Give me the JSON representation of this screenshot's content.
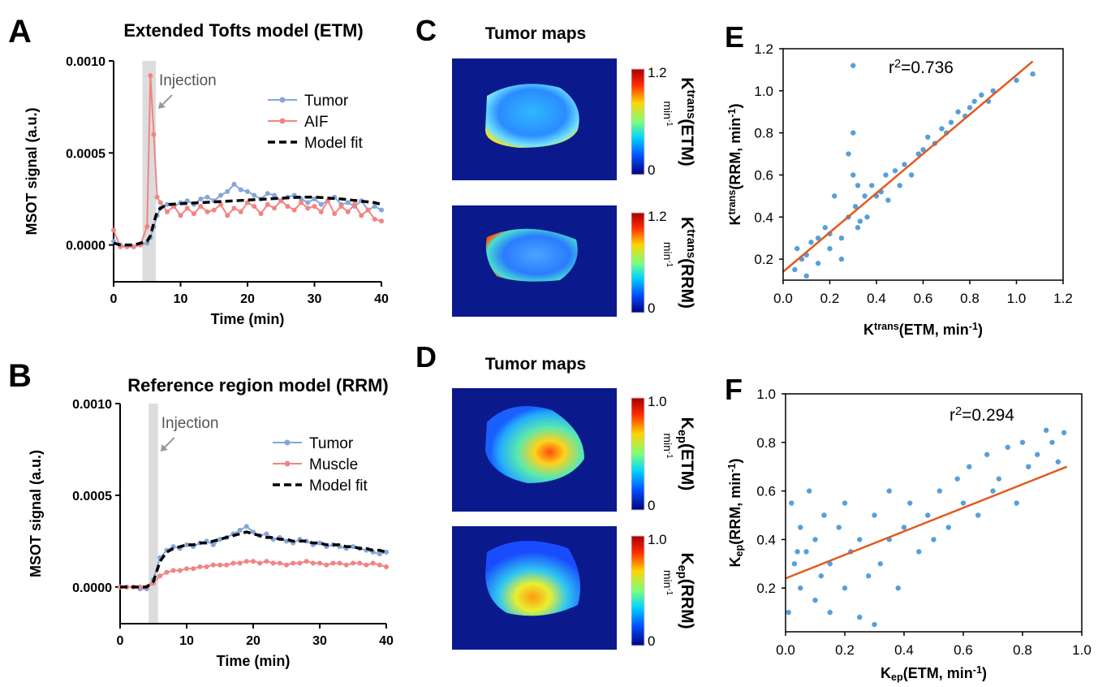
{
  "chart_data": [
    {
      "type": "line",
      "letter": "A",
      "title": "Extended Tofts model (ETM)",
      "x_label": "Time (min)",
      "y_label": "MSOT signal (a.u.)",
      "x": [
        0,
        1,
        2,
        3,
        4,
        5,
        5.5,
        6,
        6.5,
        7,
        8,
        9,
        10,
        11,
        12,
        13,
        14,
        15,
        16,
        17,
        18,
        19,
        20,
        21,
        22,
        23,
        24,
        25,
        26,
        27,
        28,
        29,
        30,
        31,
        32,
        33,
        34,
        35,
        36,
        37,
        38,
        39,
        40
      ],
      "xlim": [
        0,
        40
      ],
      "xticks": [
        0,
        10,
        20,
        30,
        40
      ],
      "ylim": [
        -0.0002,
        0.001
      ],
      "yticks": [
        {
          "value": 0,
          "label": "0.0000"
        },
        0.0005,
        {
          "value": 0.001,
          "label": "0.0010"
        }
      ],
      "shade": [
        4.3,
        6.3
      ],
      "annotation": "Injection",
      "legend": "upper right",
      "series": [
        {
          "name": "Tumor",
          "color": "#86a6da",
          "marker": true,
          "dashed": false,
          "values": [
            2e-05,
            0,
            -1e-05,
            -1e-05,
            0,
            1e-05,
            4e-05,
            0.0001,
            0.00016,
            0.0002,
            0.00022,
            0.00021,
            0.00023,
            0.00024,
            0.00022,
            0.00025,
            0.00026,
            0.00024,
            0.00027,
            0.00029,
            0.00033,
            0.0003,
            0.00029,
            0.00027,
            0.00025,
            0.00028,
            0.00027,
            0.00024,
            0.00026,
            0.00027,
            0.00025,
            0.00023,
            0.00025,
            0.00022,
            0.00024,
            0.00026,
            0.00022,
            0.00023,
            0.00021,
            0.00024,
            0.00019,
            0.00021,
            0.00019
          ]
        },
        {
          "name": "AIF",
          "color": "#f28482",
          "marker": true,
          "dashed": false,
          "values": [
            8e-05,
            -1e-05,
            -1e-05,
            -1e-05,
            0,
            0.0001,
            0.00092,
            0.0006,
            0.00026,
            0.00023,
            0.00018,
            0.00021,
            0.00016,
            0.0002,
            0.00017,
            0.00021,
            0.00018,
            0.00019,
            0.00022,
            0.00016,
            0.0002,
            0.00018,
            0.00023,
            0.00021,
            0.00017,
            0.00022,
            0.0002,
            0.00024,
            0.00021,
            0.00019,
            0.00023,
            0.0002,
            0.00021,
            0.00018,
            0.00024,
            0.00017,
            0.00021,
            0.00018,
            0.00022,
            0.00016,
            0.00019,
            0.00014,
            0.00013
          ]
        },
        {
          "name": "Model fit",
          "color": "#000000",
          "marker": false,
          "dashed": true,
          "values": [
            1e-05,
            0,
            0,
            0,
            1e-05,
            2e-05,
            5e-05,
            0.00012,
            0.00018,
            0.0002,
            0.00022,
            0.000222,
            0.000224,
            0.000226,
            0.000228,
            0.00023,
            0.000232,
            0.000234,
            0.000236,
            0.000238,
            0.00024,
            0.000242,
            0.000244,
            0.000246,
            0.000248,
            0.00025,
            0.000252,
            0.000254,
            0.000256,
            0.000258,
            0.00026,
            0.00026,
            0.00026,
            0.000258,
            0.000255,
            0.000252,
            0.00025,
            0.000246,
            0.000242,
            0.000238,
            0.000234,
            0.00023,
            0.00022
          ]
        }
      ]
    },
    {
      "type": "line",
      "letter": "B",
      "title": "Reference region model (RRM)",
      "x_label": "Time (min)",
      "y_label": "MSOT signal (a.u.)",
      "x": [
        0,
        1,
        2,
        3,
        4,
        5,
        6,
        7,
        8,
        9,
        10,
        11,
        12,
        13,
        14,
        15,
        16,
        17,
        18,
        19,
        20,
        21,
        22,
        23,
        24,
        25,
        26,
        27,
        28,
        29,
        30,
        31,
        32,
        33,
        34,
        35,
        36,
        37,
        38,
        39,
        40
      ],
      "xlim": [
        0,
        40
      ],
      "xticks": [
        0,
        10,
        20,
        30,
        40
      ],
      "ylim": [
        -0.0002,
        0.001
      ],
      "yticks": [
        {
          "value": 0,
          "label": "0.0000"
        },
        0.0005,
        {
          "value": 0.001,
          "label": "0.0010"
        }
      ],
      "shade": [
        4.3,
        5.7
      ],
      "annotation": "Injection",
      "legend": "upper right",
      "series": [
        {
          "name": "Tumor",
          "color": "#86a6da",
          "marker": true,
          "dashed": false,
          "values": [
            0,
            0,
            0,
            -1e-05,
            -1e-05,
            4e-05,
            0.00016,
            0.0002,
            0.00022,
            0.00021,
            0.00023,
            0.00022,
            0.00024,
            0.00025,
            0.00023,
            0.00026,
            0.00027,
            0.00029,
            0.00031,
            0.00033,
            0.0003,
            0.00028,
            0.00029,
            0.00026,
            0.00027,
            0.00025,
            0.00024,
            0.00026,
            0.00025,
            0.00023,
            0.00024,
            0.00022,
            0.00023,
            0.00022,
            0.00021,
            0.00022,
            0.00021,
            0.0002,
            0.00019,
            0.00018,
            0.00019
          ]
        },
        {
          "name": "Muscle",
          "color": "#f28482",
          "marker": true,
          "dashed": false,
          "values": [
            0,
            0,
            0,
            0,
            0,
            2e-05,
            6e-05,
            8e-05,
            9e-05,
            9e-05,
            0.0001,
            0.0001,
            0.00011,
            0.00011,
            0.00012,
            0.00012,
            0.00012,
            0.00013,
            0.00013,
            0.00014,
            0.00014,
            0.00013,
            0.00014,
            0.00013,
            0.00013,
            0.00012,
            0.00013,
            0.00013,
            0.00014,
            0.00013,
            0.00013,
            0.00012,
            0.00013,
            0.00013,
            0.00012,
            0.00013,
            0.00013,
            0.00012,
            0.00013,
            0.00012,
            0.00011
          ]
        },
        {
          "name": "Model fit",
          "color": "#000000",
          "marker": false,
          "dashed": true,
          "values": [
            0,
            0,
            0,
            0,
            0,
            3e-05,
            0.00014,
            0.00019,
            0.00021,
            0.00022,
            0.00023,
            0.00023,
            0.00024,
            0.00024,
            0.00025,
            0.00026,
            0.00027,
            0.00028,
            0.00029,
            0.0003,
            0.00029,
            0.00028,
            0.00027,
            0.00027,
            0.00026,
            0.00026,
            0.00025,
            0.00025,
            0.00025,
            0.00024,
            0.00024,
            0.00023,
            0.00023,
            0.00023,
            0.00022,
            0.00022,
            0.00021,
            0.00021,
            0.0002,
            0.0002,
            0.00019
          ]
        }
      ]
    },
    {
      "type": "scatter",
      "letter": "E",
      "x_label": [
        "K",
        "trans",
        "(ETM, min",
        "-1",
        ")"
      ],
      "y_label": [
        "K",
        "trans",
        "(RRM, min",
        "-1",
        ")"
      ],
      "annotation": [
        "r",
        "2",
        "=0.736"
      ],
      "color": "#3b8ed2",
      "fit_color": "#e2591f",
      "xlim": [
        0,
        1.2
      ],
      "xticks": [
        {
          "value": 0,
          "label": "0.0"
        },
        0.2,
        0.4,
        0.6,
        0.8,
        {
          "value": 1,
          "label": "1.0"
        },
        1.2
      ],
      "ylim": [
        0.1,
        1.2
      ],
      "yticks": [
        0.2,
        0.4,
        0.6,
        0.8,
        {
          "value": 1,
          "label": "1.0"
        },
        1.2
      ],
      "x": [
        0.05,
        0.06,
        0.08,
        0.1,
        0.12,
        0.15,
        0.18,
        0.2,
        0.22,
        0.25,
        0.28,
        0.3,
        0.3,
        0.31,
        0.32,
        0.33,
        0.35,
        0.36,
        0.38,
        0.4,
        0.42,
        0.44,
        0.45,
        0.48,
        0.5,
        0.52,
        0.55,
        0.58,
        0.6,
        0.62,
        0.65,
        0.68,
        0.7,
        0.72,
        0.75,
        0.78,
        0.8,
        0.82,
        0.85,
        0.88,
        0.9,
        1.0,
        1.07,
        0.1,
        0.15,
        0.2,
        0.25,
        0.3,
        0.32,
        0.28
      ],
      "y": [
        0.15,
        0.25,
        0.2,
        0.22,
        0.28,
        0.3,
        0.35,
        0.25,
        0.5,
        0.3,
        0.4,
        1.12,
        0.8,
        0.45,
        0.55,
        0.38,
        0.5,
        0.4,
        0.55,
        0.5,
        0.52,
        0.6,
        0.48,
        0.62,
        0.55,
        0.65,
        0.6,
        0.7,
        0.72,
        0.78,
        0.75,
        0.82,
        0.8,
        0.85,
        0.9,
        0.88,
        0.92,
        0.95,
        0.98,
        0.95,
        1.0,
        1.05,
        1.08,
        0.12,
        0.18,
        0.32,
        0.2,
        0.6,
        0.35,
        0.7
      ],
      "fit": {
        "x": [
          0,
          1.07
        ],
        "y": [
          0.14,
          1.14
        ]
      }
    },
    {
      "type": "scatter",
      "letter": "F",
      "x_label": [
        "K",
        "ep",
        "(ETM, min",
        "-1",
        ")"
      ],
      "y_label": [
        "K",
        "ep",
        "(RRM, min",
        "-1",
        ")"
      ],
      "annotation": [
        "r",
        "2",
        "=0.294"
      ],
      "color": "#3b8ed2",
      "fit_color": "#e2591f",
      "xlim": [
        0,
        1
      ],
      "xticks": [
        {
          "value": 0,
          "label": "0.0"
        },
        0.2,
        0.4,
        0.6,
        0.8,
        {
          "value": 1,
          "label": "1.0"
        }
      ],
      "ylim": [
        0.02,
        1
      ],
      "yticks": [
        0.2,
        0.4,
        0.6,
        0.8,
        {
          "value": 1,
          "label": "1.0"
        }
      ],
      "x": [
        0.01,
        0.02,
        0.03,
        0.05,
        0.05,
        0.07,
        0.08,
        0.1,
        0.1,
        0.12,
        0.13,
        0.15,
        0.15,
        0.18,
        0.2,
        0.2,
        0.22,
        0.25,
        0.25,
        0.28,
        0.3,
        0.3,
        0.32,
        0.35,
        0.35,
        0.38,
        0.4,
        0.42,
        0.45,
        0.48,
        0.5,
        0.52,
        0.55,
        0.58,
        0.6,
        0.62,
        0.65,
        0.68,
        0.7,
        0.72,
        0.75,
        0.78,
        0.8,
        0.82,
        0.85,
        0.88,
        0.9,
        0.92,
        0.94,
        0.04
      ],
      "y": [
        0.1,
        0.55,
        0.3,
        0.2,
        0.45,
        0.35,
        0.6,
        0.15,
        0.4,
        0.25,
        0.5,
        0.1,
        0.3,
        0.45,
        0.2,
        0.55,
        0.35,
        0.08,
        0.4,
        0.25,
        0.05,
        0.5,
        0.3,
        0.6,
        0.4,
        0.2,
        0.45,
        0.55,
        0.35,
        0.5,
        0.4,
        0.6,
        0.45,
        0.65,
        0.55,
        0.7,
        0.5,
        0.75,
        0.6,
        0.65,
        0.78,
        0.55,
        0.8,
        0.7,
        0.75,
        0.85,
        0.8,
        0.72,
        0.84,
        0.35
      ],
      "fit": {
        "x": [
          0,
          0.95
        ],
        "y": [
          0.24,
          0.7
        ]
      }
    }
  ],
  "maps": [
    {
      "letter": "C",
      "title": "Tumor maps",
      "bars": [
        {
          "label": [
            "K",
            "trans",
            "(ETM)"
          ],
          "unit": [
            "min",
            "-1"
          ],
          "ticks": [
            "1.2",
            "0"
          ]
        },
        {
          "label": [
            "K",
            "trans",
            "(RRM)"
          ],
          "unit": [
            "min",
            "-1"
          ],
          "ticks": [
            "1.2",
            "0"
          ]
        }
      ]
    },
    {
      "letter": "D",
      "title": "Tumor maps",
      "bars": [
        {
          "label": [
            "K",
            "ep",
            "(ETM)"
          ],
          "unit": [
            "min",
            "-1"
          ],
          "ticks": [
            "1.0",
            "0"
          ]
        },
        {
          "label": [
            "K",
            "ep",
            "(RRM)"
          ],
          "unit": [
            "min",
            "-1"
          ],
          "ticks": [
            "1.0",
            "0"
          ]
        }
      ]
    }
  ]
}
